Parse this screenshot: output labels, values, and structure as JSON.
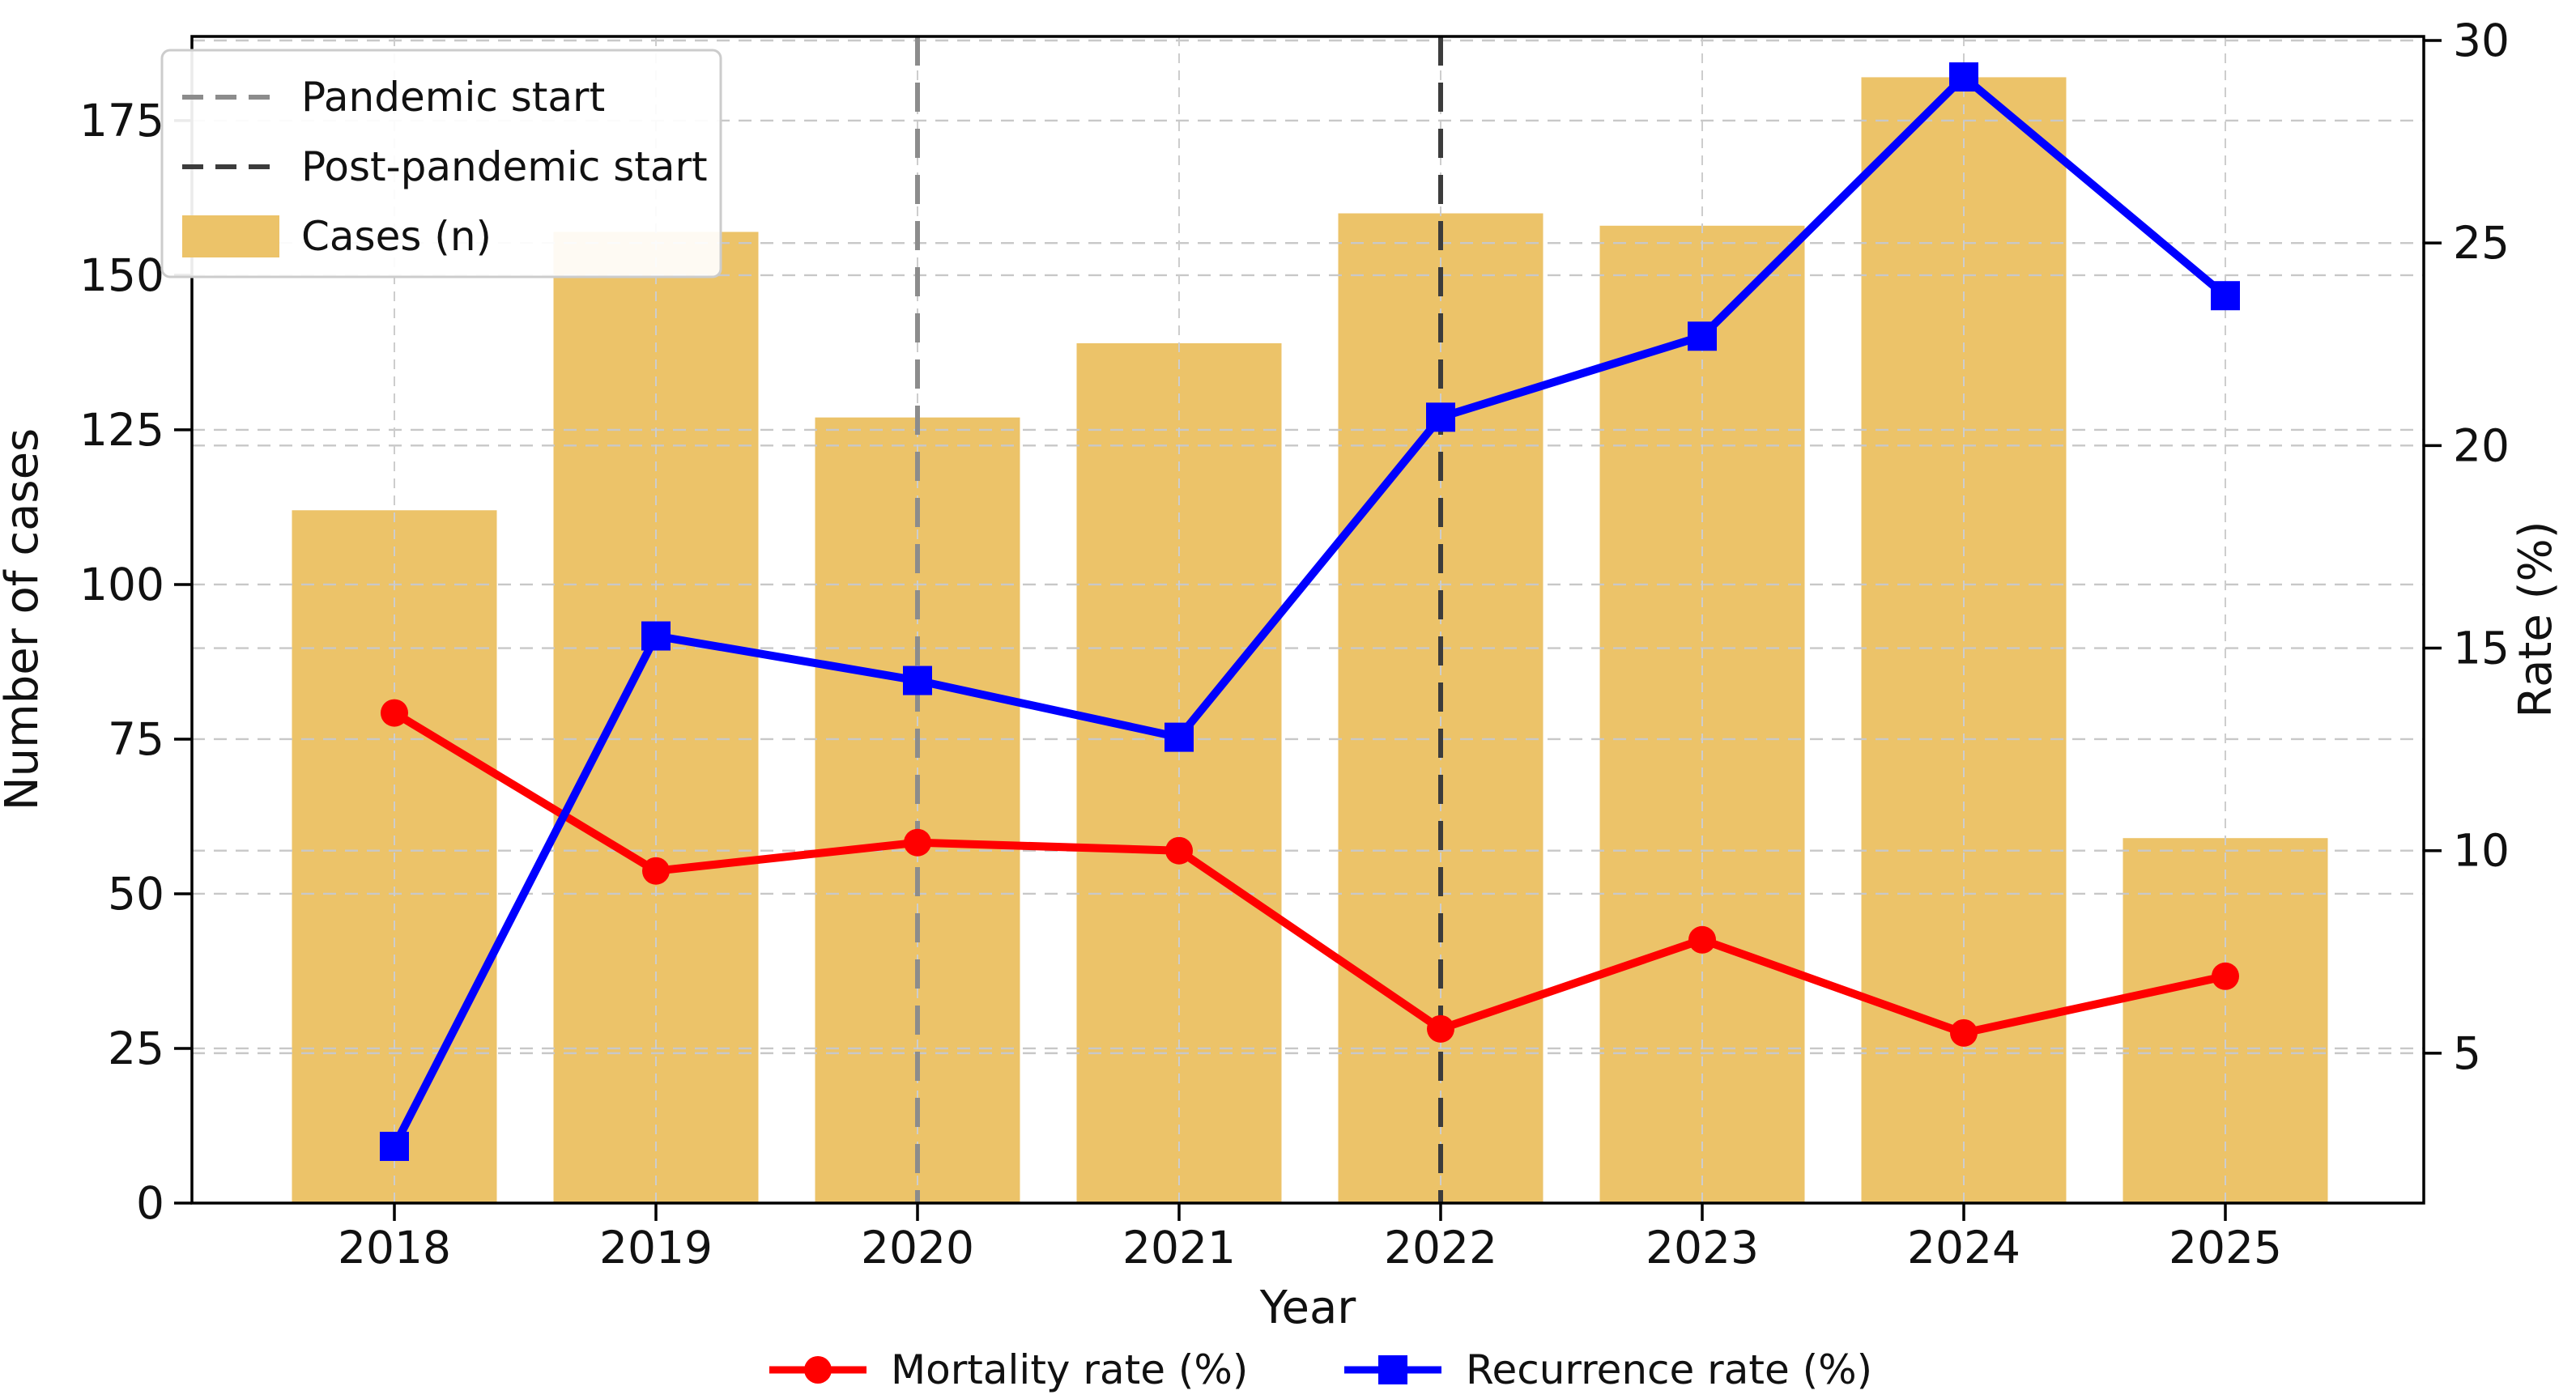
{
  "chart_data": {
    "type": "combo",
    "title": "",
    "categories": [
      "2018",
      "2019",
      "2020",
      "2021",
      "2022",
      "2023",
      "2024",
      "2025"
    ],
    "x_axis": {
      "label": "Year"
    },
    "left_axis": {
      "label": "Number of cases",
      "ticks": [
        0,
        25,
        50,
        75,
        100,
        125,
        150,
        175
      ],
      "ylim": [
        0,
        188.6
      ]
    },
    "right_axis": {
      "label": "Rate (%)",
      "ticks": [
        5,
        10,
        15,
        20,
        25,
        30
      ],
      "ylim": [
        1.3,
        30.1
      ]
    },
    "series": [
      {
        "name": "Cases (n)",
        "type": "bar",
        "axis": "left",
        "color": "#ecc369",
        "values": [
          112,
          157,
          127,
          139,
          160,
          158,
          182,
          59
        ]
      },
      {
        "name": "Mortality rate (%)",
        "type": "line",
        "marker": "circle",
        "axis": "right",
        "color": "#ff0000",
        "values": [
          13.4,
          9.5,
          10.2,
          10.0,
          5.6,
          7.8,
          5.5,
          6.9
        ]
      },
      {
        "name": "Recurrence rate (%)",
        "type": "line",
        "marker": "square",
        "axis": "right",
        "color": "#0000ff",
        "values": [
          2.7,
          15.3,
          14.2,
          12.8,
          20.7,
          22.7,
          29.1,
          23.7
        ]
      }
    ],
    "annotations": [
      {
        "label": "Pandemic start",
        "x": "2020",
        "color": "#8c8c8c",
        "style": "dashed"
      },
      {
        "label": "Post-pandemic start",
        "x": "2022",
        "color": "#3c3c3c",
        "style": "dashed"
      }
    ],
    "legend_top_left": {
      "items": [
        "Pandemic start",
        "Post-pandemic start",
        "Cases (n)"
      ],
      "position": "upper left",
      "framed": true
    },
    "legend_bottom": {
      "items": [
        "Mortality rate (%)",
        "Recurrence rate (%)"
      ],
      "position": "below x-axis",
      "framed": false
    },
    "grid": true,
    "grid_color": "#c8c8c8",
    "background": "#ffffff"
  }
}
